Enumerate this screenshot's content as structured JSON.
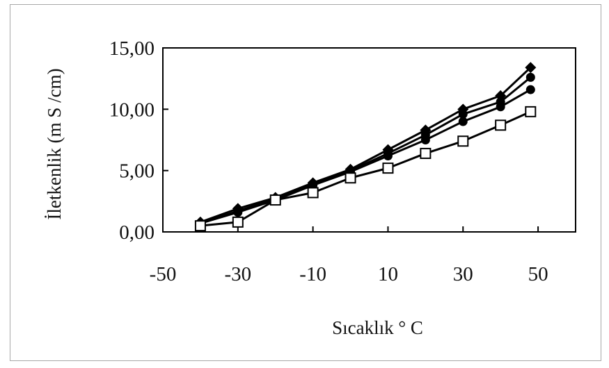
{
  "chart_data": {
    "type": "line",
    "xlabel": "Sıcaklık ° C",
    "ylabel": "İletkenlik (m S /cm)",
    "xlim": [
      -50,
      60
    ],
    "ylim": [
      0,
      15
    ],
    "x_ticks": [
      -50,
      -30,
      -10,
      10,
      30,
      50
    ],
    "x_tick_labels": [
      "-50",
      "-30",
      "-10",
      "10",
      "30",
      "50"
    ],
    "y_ticks": [
      0,
      5,
      10,
      15
    ],
    "y_tick_labels": [
      "0,00",
      "5,00",
      "10,00",
      "15,00"
    ],
    "grid": false,
    "legend": "none",
    "x": [
      -40,
      -30,
      -20,
      -10,
      0,
      10,
      20,
      30,
      40,
      48
    ],
    "series": [
      {
        "marker": "diamond",
        "values": [
          0.8,
          1.9,
          2.8,
          4.0,
          5.1,
          6.7,
          8.3,
          10.0,
          11.1,
          13.4
        ]
      },
      {
        "marker": "circle",
        "values": [
          0.7,
          1.7,
          2.7,
          3.9,
          5.0,
          6.4,
          7.9,
          9.6,
          10.6,
          12.6
        ]
      },
      {
        "marker": "circle",
        "values": [
          0.7,
          1.6,
          2.6,
          3.8,
          4.9,
          6.2,
          7.5,
          9.0,
          10.2,
          11.6
        ]
      },
      {
        "marker": "square-open",
        "values": [
          0.5,
          0.8,
          2.6,
          3.2,
          4.4,
          5.2,
          6.4,
          7.4,
          8.7,
          9.8
        ]
      }
    ]
  }
}
